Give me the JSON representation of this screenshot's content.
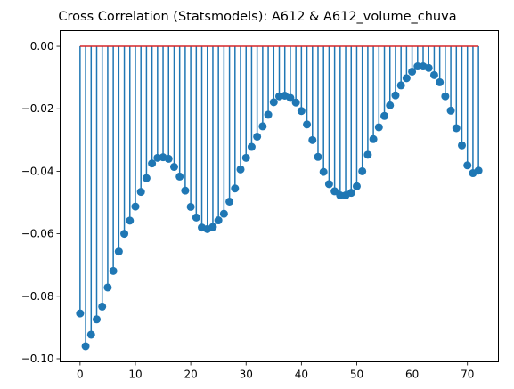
{
  "chart_data": {
    "type": "stem",
    "title": "Cross Correlation (Statsmodels): A612 & A612_volume_chuva",
    "xlabel": "",
    "ylabel": "",
    "xlim": [
      -3.6,
      75.6
    ],
    "ylim": [
      -0.101,
      0.005
    ],
    "xticks": [
      0,
      10,
      20,
      30,
      40,
      50,
      60,
      70
    ],
    "yticks": [
      0.0,
      -0.02,
      -0.04,
      -0.06,
      -0.08,
      -0.1
    ],
    "ytick_labels": [
      "0.00",
      "−0.02",
      "−0.04",
      "−0.06",
      "−0.08",
      "−0.10"
    ],
    "baseline": 0,
    "grid": false,
    "series": [
      {
        "x": [
          0,
          1,
          2,
          3,
          4,
          5,
          6,
          7,
          8,
          9,
          10,
          11,
          12,
          13,
          14,
          15,
          16,
          17,
          18,
          19,
          20,
          21,
          22,
          23,
          24,
          25,
          26,
          27,
          28,
          29,
          30,
          31,
          32,
          33,
          34,
          35,
          36,
          37,
          38,
          39,
          40,
          41,
          42,
          43,
          44,
          45,
          46,
          47,
          48,
          49,
          50,
          51,
          52,
          53,
          54,
          55,
          56,
          57,
          58,
          59,
          60,
          61,
          62,
          63,
          64,
          65,
          66,
          67,
          68,
          69,
          70,
          71,
          72
        ],
        "values": [
          -0.0855,
          -0.096,
          -0.0923,
          -0.0874,
          -0.0833,
          -0.0772,
          -0.0719,
          -0.0657,
          -0.06,
          -0.0558,
          -0.0513,
          -0.0466,
          -0.0422,
          -0.0375,
          -0.0357,
          -0.0355,
          -0.036,
          -0.0386,
          -0.0417,
          -0.0462,
          -0.0514,
          -0.0548,
          -0.058,
          -0.0585,
          -0.0578,
          -0.0557,
          -0.0536,
          -0.0497,
          -0.0455,
          -0.0394,
          -0.0357,
          -0.0322,
          -0.0289,
          -0.0256,
          -0.0219,
          -0.0179,
          -0.016,
          -0.0158,
          -0.0165,
          -0.018,
          -0.0207,
          -0.025,
          -0.03,
          -0.0354,
          -0.0402,
          -0.0441,
          -0.0464,
          -0.0477,
          -0.0477,
          -0.0469,
          -0.0448,
          -0.04,
          -0.0347,
          -0.0297,
          -0.0259,
          -0.0223,
          -0.0189,
          -0.0157,
          -0.0125,
          -0.0102,
          -0.0081,
          -0.0064,
          -0.0064,
          -0.0069,
          -0.0092,
          -0.0115,
          -0.016,
          -0.0206,
          -0.0262,
          -0.0317,
          -0.0381,
          -0.0406,
          -0.0398
        ],
        "color": "#1f77b4",
        "baseline_color": "#d62728"
      }
    ]
  }
}
